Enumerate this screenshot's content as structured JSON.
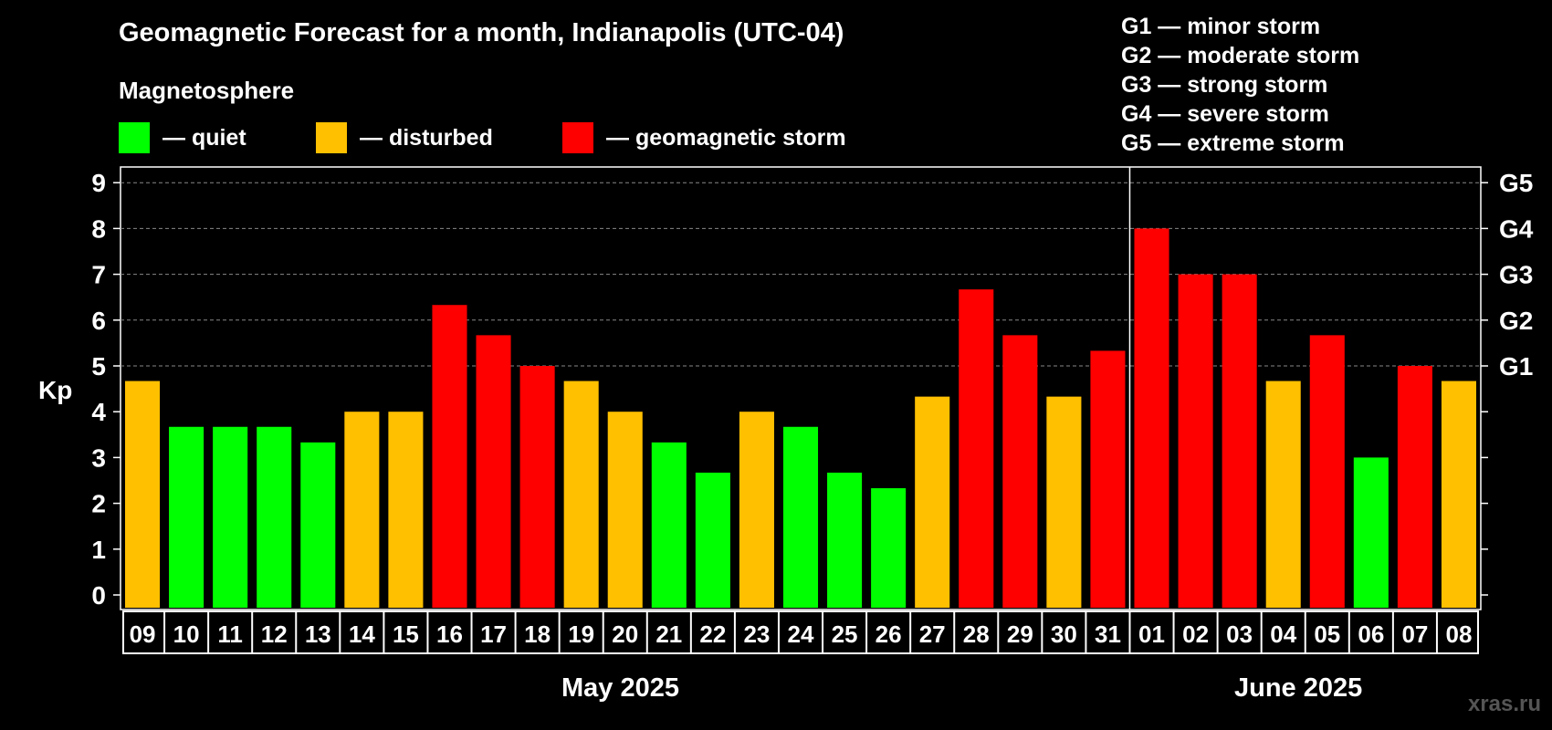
{
  "title": "Geomagnetic Forecast for a month, Indianapolis (UTC-04)",
  "subtitle": "Magnetosphere",
  "legend": [
    {
      "label": "— quiet",
      "color": "#00ff00"
    },
    {
      "label": "— disturbed",
      "color": "#ffc000"
    },
    {
      "label": "— geomagnetic storm",
      "color": "#ff0000"
    }
  ],
  "g_levels": [
    "G1 — minor storm",
    "G2 — moderate storm",
    "G3 — strong storm",
    "G4 — severe storm",
    "G5 — extreme storm"
  ],
  "watermark": "xras.ru",
  "chart_data": {
    "type": "bar",
    "ylabel": "Kp",
    "ylim": [
      0,
      9
    ],
    "y_ticks": [
      "0",
      "1",
      "2",
      "3",
      "4",
      "5",
      "6",
      "7",
      "8",
      "9"
    ],
    "right_ticks": [
      {
        "value": 5,
        "label": "G1"
      },
      {
        "value": 6,
        "label": "G2"
      },
      {
        "value": 7,
        "label": "G3"
      },
      {
        "value": 8,
        "label": "G4"
      },
      {
        "value": 9,
        "label": "G5"
      }
    ],
    "grid": "dashed at Kp 5-9",
    "months": [
      "May 2025",
      "June 2025"
    ],
    "categories": [
      "09",
      "10",
      "11",
      "12",
      "13",
      "14",
      "15",
      "16",
      "17",
      "18",
      "19",
      "20",
      "21",
      "22",
      "23",
      "24",
      "25",
      "26",
      "27",
      "28",
      "29",
      "30",
      "31",
      "01",
      "02",
      "03",
      "04",
      "05",
      "06",
      "07",
      "08"
    ],
    "values": [
      4.67,
      3.67,
      3.67,
      3.67,
      3.33,
      4.0,
      4.0,
      6.33,
      5.67,
      5.0,
      4.67,
      4.0,
      3.33,
      2.67,
      4.0,
      3.67,
      2.67,
      2.33,
      4.33,
      6.67,
      5.67,
      4.33,
      5.33,
      8.0,
      7.0,
      7.0,
      4.67,
      5.67,
      3.0,
      5.0,
      4.67
    ],
    "status": [
      "disturbed",
      "quiet",
      "quiet",
      "quiet",
      "quiet",
      "disturbed",
      "disturbed",
      "storm",
      "storm",
      "storm",
      "disturbed",
      "disturbed",
      "quiet",
      "quiet",
      "disturbed",
      "quiet",
      "quiet",
      "quiet",
      "disturbed",
      "storm",
      "storm",
      "disturbed",
      "storm",
      "storm",
      "storm",
      "storm",
      "disturbed",
      "storm",
      "quiet",
      "storm",
      "disturbed"
    ],
    "colors": {
      "quiet": "#00ff00",
      "disturbed": "#ffc000",
      "storm": "#ff0000"
    }
  }
}
